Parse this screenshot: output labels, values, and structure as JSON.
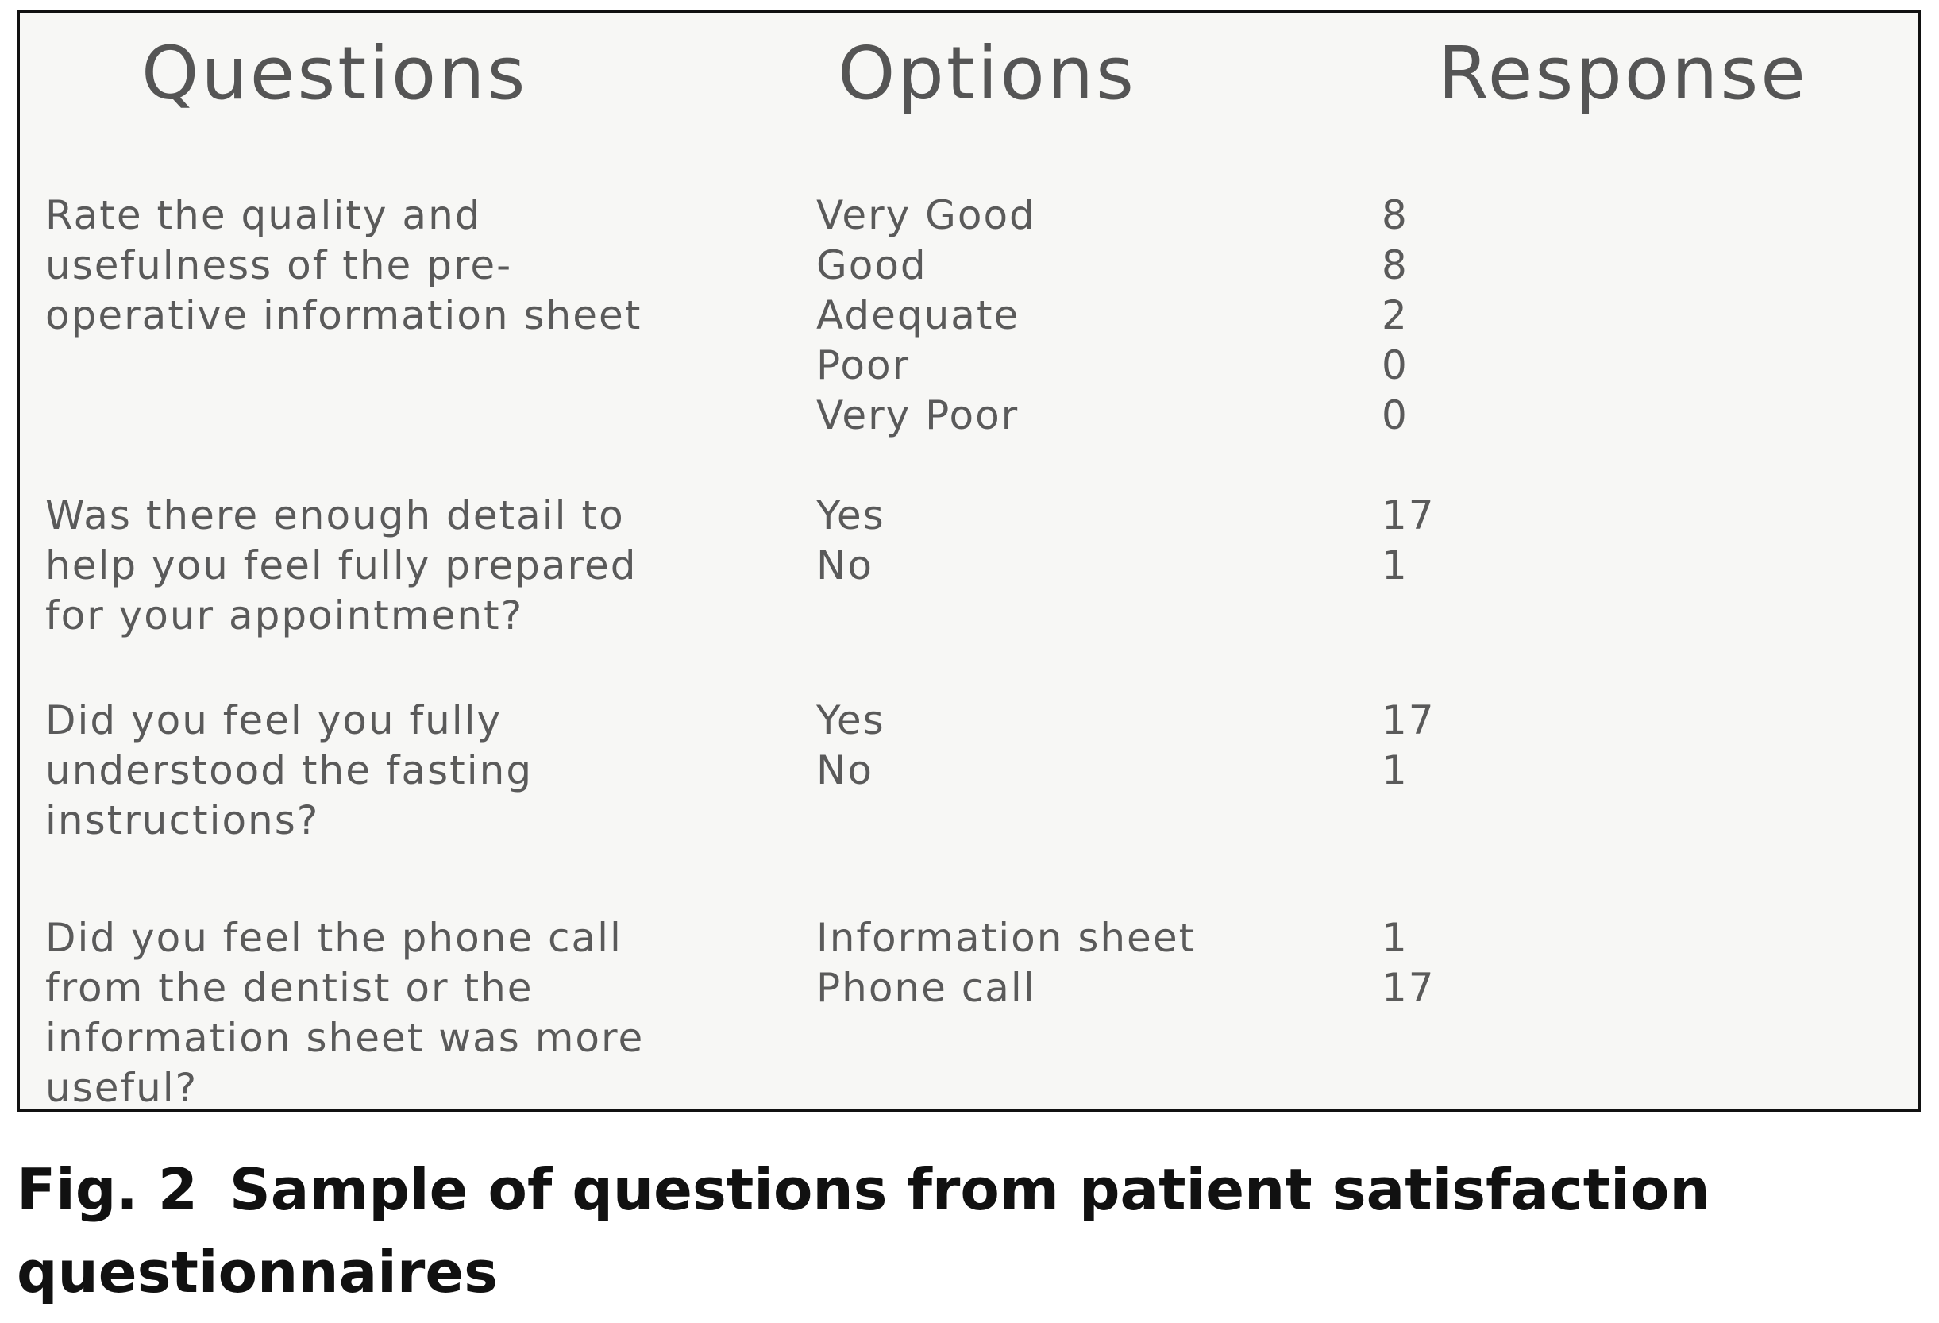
{
  "headers": {
    "questions": "Questions",
    "options": "Options",
    "response": "Response"
  },
  "rows": [
    {
      "question_lines": [
        "Rate the quality and",
        "usefulness of the pre-",
        "operative information sheet"
      ],
      "options": [
        "Very Good",
        "Good",
        "Adequate",
        "Poor",
        "Very Poor"
      ],
      "responses": [
        "8",
        "8",
        "2",
        "0",
        "0"
      ]
    },
    {
      "question_lines": [
        "Was there enough detail to",
        "help you feel fully prepared",
        "for your appointment?"
      ],
      "options": [
        "Yes",
        "No"
      ],
      "responses": [
        "17",
        "1"
      ]
    },
    {
      "question_lines": [
        "Did you feel you fully",
        "understood the fasting",
        "instructions?"
      ],
      "options": [
        "Yes",
        "No"
      ],
      "responses": [
        "17",
        "1"
      ]
    },
    {
      "question_lines": [
        "Did you feel the phone call",
        "from the dentist or the",
        "information sheet was more",
        "useful?"
      ],
      "options": [
        "Information sheet",
        "Phone call"
      ],
      "responses": [
        "1",
        "17"
      ]
    }
  ],
  "caption": {
    "label": "Fig. 2",
    "text": "Sample of questions from patient satisfaction questionnaires"
  }
}
